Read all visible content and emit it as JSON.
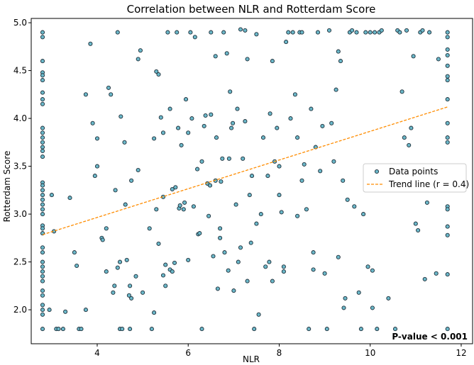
{
  "chart_data": {
    "type": "scatter",
    "title": "Correlation between NLR and Rotterdam Score",
    "xlabel": "NLR",
    "ylabel": "Rotterdam Score",
    "xlim": [
      2.55,
      12.25
    ],
    "ylim": [
      1.645,
      5.045
    ],
    "xticks": [
      4,
      6,
      8,
      10,
      12
    ],
    "yticks": [
      2.0,
      2.5,
      3.0,
      3.5,
      4.0,
      4.5,
      5.0
    ],
    "xtick_labels": [
      "4",
      "6",
      "8",
      "10",
      "12"
    ],
    "ytick_labels": [
      "2.0",
      "2.5",
      "3.0",
      "3.5",
      "4.0",
      "4.5",
      "5.0"
    ],
    "grid": false,
    "legend_position": "center-right",
    "annotation": "P-value < 0.001",
    "point_color": "#6bb8c9",
    "point_edge_color": "#1f2f3a",
    "trend_color": "#ff8c00",
    "series": [
      {
        "name": "Data points",
        "kind": "scatter",
        "points": [
          [
            2.8,
            4.9
          ],
          [
            2.8,
            4.85
          ],
          [
            2.8,
            4.6
          ],
          [
            2.8,
            4.48
          ],
          [
            2.8,
            4.45
          ],
          [
            2.8,
            4.4
          ],
          [
            2.8,
            4.27
          ],
          [
            2.8,
            4.2
          ],
          [
            2.8,
            4.15
          ],
          [
            2.8,
            3.9
          ],
          [
            2.8,
            3.85
          ],
          [
            2.8,
            3.8
          ],
          [
            2.8,
            3.75
          ],
          [
            2.8,
            3.7
          ],
          [
            2.8,
            3.66
          ],
          [
            2.8,
            3.6
          ],
          [
            2.8,
            3.33
          ],
          [
            2.8,
            3.3
          ],
          [
            2.8,
            3.25
          ],
          [
            2.8,
            3.2
          ],
          [
            2.8,
            3.15
          ],
          [
            2.8,
            3.1
          ],
          [
            2.8,
            3.05
          ],
          [
            2.8,
            3.0
          ],
          [
            2.8,
            2.88
          ],
          [
            2.8,
            2.85
          ],
          [
            2.8,
            2.8
          ],
          [
            2.8,
            2.65
          ],
          [
            2.8,
            2.6
          ],
          [
            2.8,
            2.5
          ],
          [
            2.8,
            2.45
          ],
          [
            2.8,
            2.4
          ],
          [
            2.8,
            2.35
          ],
          [
            2.8,
            2.3
          ],
          [
            2.8,
            2.2
          ],
          [
            2.8,
            2.15
          ],
          [
            2.8,
            2.05
          ],
          [
            2.8,
            2.0
          ],
          [
            2.8,
            1.95
          ],
          [
            2.8,
            1.8
          ],
          [
            2.95,
            2.0
          ],
          [
            3.0,
            3.2
          ],
          [
            3.05,
            2.82
          ],
          [
            3.1,
            1.8
          ],
          [
            3.15,
            1.8
          ],
          [
            3.25,
            1.8
          ],
          [
            3.3,
            1.98
          ],
          [
            3.4,
            3.17
          ],
          [
            3.5,
            2.6
          ],
          [
            3.55,
            2.46
          ],
          [
            3.6,
            1.8
          ],
          [
            3.65,
            1.8
          ],
          [
            3.75,
            2.0
          ],
          [
            3.75,
            4.25
          ],
          [
            3.85,
            4.78
          ],
          [
            3.9,
            3.95
          ],
          [
            3.95,
            3.4
          ],
          [
            4.0,
            3.5
          ],
          [
            4.0,
            3.79
          ],
          [
            4.1,
            2.75
          ],
          [
            4.12,
            2.73
          ],
          [
            4.2,
            2.4
          ],
          [
            4.2,
            2.85
          ],
          [
            4.25,
            4.32
          ],
          [
            4.3,
            4.25
          ],
          [
            4.35,
            2.18
          ],
          [
            4.38,
            2.25
          ],
          [
            4.4,
            3.25
          ],
          [
            4.45,
            4.9
          ],
          [
            4.45,
            2.44
          ],
          [
            4.5,
            2.5
          ],
          [
            4.5,
            1.8
          ],
          [
            4.52,
            4.02
          ],
          [
            4.55,
            1.8
          ],
          [
            4.6,
            3.75
          ],
          [
            4.62,
            3.1
          ],
          [
            4.65,
            2.52
          ],
          [
            4.7,
            2.15
          ],
          [
            4.72,
            2.25
          ],
          [
            4.72,
            1.8
          ],
          [
            4.75,
            2.12
          ],
          [
            4.75,
            3.35
          ],
          [
            4.85,
            2.35
          ],
          [
            4.9,
            3.46
          ],
          [
            4.9,
            4.62
          ],
          [
            4.95,
            4.71
          ],
          [
            5.0,
            2.18
          ],
          [
            5.15,
            2.85
          ],
          [
            5.2,
            1.8
          ],
          [
            5.25,
            1.97
          ],
          [
            5.25,
            3.79
          ],
          [
            5.3,
            3.05
          ],
          [
            5.3,
            4.49
          ],
          [
            5.35,
            4.46
          ],
          [
            5.35,
            2.69
          ],
          [
            5.4,
            4.01
          ],
          [
            5.45,
            3.85
          ],
          [
            5.45,
            3.18
          ],
          [
            5.45,
            2.36
          ],
          [
            5.5,
            2.25
          ],
          [
            5.5,
            2.47
          ],
          [
            5.55,
            4.9
          ],
          [
            5.6,
            2.42
          ],
          [
            5.6,
            4.1
          ],
          [
            5.65,
            3.26
          ],
          [
            5.65,
            2.4
          ],
          [
            5.7,
            2.49
          ],
          [
            5.72,
            3.28
          ],
          [
            5.75,
            4.9
          ],
          [
            5.78,
            3.9
          ],
          [
            5.8,
            3.06
          ],
          [
            5.82,
            3.09
          ],
          [
            5.85,
            3.72
          ],
          [
            5.9,
            3.05
          ],
          [
            5.92,
            3.12
          ],
          [
            5.95,
            4.2
          ],
          [
            6.0,
            2.52
          ],
          [
            6.0,
            3.85
          ],
          [
            6.05,
            4.9
          ],
          [
            6.08,
            4.0
          ],
          [
            6.12,
            3.08
          ],
          [
            6.15,
            4.85
          ],
          [
            6.2,
            3.47
          ],
          [
            6.22,
            2.79
          ],
          [
            6.25,
            2.8
          ],
          [
            6.3,
            3.55
          ],
          [
            6.3,
            1.8
          ],
          [
            6.35,
            3.92
          ],
          [
            6.38,
            4.03
          ],
          [
            6.42,
            3.32
          ],
          [
            6.45,
            2.98
          ],
          [
            6.48,
            3.3
          ],
          [
            6.5,
            4.9
          ],
          [
            6.5,
            4.04
          ],
          [
            6.55,
            2.56
          ],
          [
            6.6,
            3.35
          ],
          [
            6.6,
            4.65
          ],
          [
            6.62,
            3.8
          ],
          [
            6.65,
            2.22
          ],
          [
            6.7,
            2.85
          ],
          [
            6.7,
            2.75
          ],
          [
            6.72,
            3.34
          ],
          [
            6.75,
            3.58
          ],
          [
            6.78,
            4.9
          ],
          [
            6.8,
            2.6
          ],
          [
            6.85,
            4.68
          ],
          [
            6.88,
            2.41
          ],
          [
            6.9,
            3.58
          ],
          [
            6.92,
            4.28
          ],
          [
            6.95,
            3.9
          ],
          [
            6.98,
            3.95
          ],
          [
            7.0,
            2.2
          ],
          [
            7.05,
            3.1
          ],
          [
            7.08,
            4.1
          ],
          [
            7.1,
            2.5
          ],
          [
            7.15,
            4.93
          ],
          [
            7.15,
            2.65
          ],
          [
            7.2,
            3.58
          ],
          [
            7.25,
            3.97
          ],
          [
            7.25,
            4.92
          ],
          [
            7.3,
            4.62
          ],
          [
            7.3,
            2.3
          ],
          [
            7.35,
            3.2
          ],
          [
            7.38,
            2.7
          ],
          [
            7.4,
            3.4
          ],
          [
            7.45,
            1.8
          ],
          [
            7.5,
            2.9
          ],
          [
            7.5,
            4.88
          ],
          [
            7.55,
            1.95
          ],
          [
            7.6,
            3.0
          ],
          [
            7.65,
            3.8
          ],
          [
            7.7,
            2.45
          ],
          [
            7.75,
            3.4
          ],
          [
            7.78,
            2.5
          ],
          [
            7.8,
            4.05
          ],
          [
            7.85,
            2.3
          ],
          [
            7.85,
            4.6
          ],
          [
            7.9,
            3.55
          ],
          [
            7.95,
            3.9
          ],
          [
            8.0,
            3.5
          ],
          [
            8.0,
            3.2
          ],
          [
            8.05,
            3.02
          ],
          [
            8.1,
            2.4
          ],
          [
            8.1,
            2.45
          ],
          [
            8.15,
            4.8
          ],
          [
            8.2,
            4.9
          ],
          [
            8.25,
            4.0
          ],
          [
            8.3,
            4.9
          ],
          [
            8.35,
            4.25
          ],
          [
            8.4,
            3.8
          ],
          [
            8.4,
            2.98
          ],
          [
            8.45,
            4.9
          ],
          [
            8.5,
            4.9
          ],
          [
            8.5,
            3.35
          ],
          [
            8.55,
            3.52
          ],
          [
            8.6,
            3.05
          ],
          [
            8.65,
            1.8
          ],
          [
            8.7,
            4.1
          ],
          [
            8.75,
            2.6
          ],
          [
            8.75,
            2.42
          ],
          [
            8.8,
            3.7
          ],
          [
            8.85,
            4.9
          ],
          [
            8.9,
            3.45
          ],
          [
            8.95,
            3.92
          ],
          [
            9.0,
            2.38
          ],
          [
            9.05,
            1.8
          ],
          [
            9.1,
            4.92
          ],
          [
            9.15,
            3.95
          ],
          [
            9.2,
            3.55
          ],
          [
            9.25,
            4.3
          ],
          [
            9.3,
            2.55
          ],
          [
            9.3,
            4.7
          ],
          [
            9.35,
            4.6
          ],
          [
            9.4,
            3.35
          ],
          [
            9.42,
            2.02
          ],
          [
            9.45,
            2.12
          ],
          [
            9.5,
            3.15
          ],
          [
            9.55,
            4.9
          ],
          [
            9.6,
            4.92
          ],
          [
            9.65,
            3.08
          ],
          [
            9.7,
            4.9
          ],
          [
            9.75,
            2.18
          ],
          [
            9.8,
            1.8
          ],
          [
            9.85,
            3.0
          ],
          [
            9.9,
            4.9
          ],
          [
            9.95,
            2.45
          ],
          [
            10.0,
            4.9
          ],
          [
            10.05,
            2.02
          ],
          [
            10.05,
            2.41
          ],
          [
            10.1,
            4.9
          ],
          [
            10.15,
            1.8
          ],
          [
            10.2,
            4.9
          ],
          [
            10.25,
            4.92
          ],
          [
            10.4,
            2.12
          ],
          [
            10.55,
            1.8
          ],
          [
            10.6,
            4.92
          ],
          [
            10.65,
            4.9
          ],
          [
            10.7,
            4.28
          ],
          [
            10.75,
            3.8
          ],
          [
            10.8,
            4.92
          ],
          [
            10.85,
            3.72
          ],
          [
            10.9,
            3.9
          ],
          [
            10.95,
            4.65
          ],
          [
            11.0,
            2.9
          ],
          [
            11.05,
            2.83
          ],
          [
            11.1,
            4.9
          ],
          [
            11.15,
            4.92
          ],
          [
            11.2,
            2.32
          ],
          [
            11.25,
            3.12
          ],
          [
            11.3,
            4.9
          ],
          [
            11.35,
            3.35
          ],
          [
            11.45,
            2.38
          ],
          [
            11.5,
            4.62
          ],
          [
            11.7,
            4.9
          ],
          [
            11.7,
            4.85
          ],
          [
            11.7,
            4.72
          ],
          [
            11.7,
            4.66
          ],
          [
            11.7,
            4.55
          ],
          [
            11.7,
            4.44
          ],
          [
            11.7,
            4.4
          ],
          [
            11.7,
            4.2
          ],
          [
            11.7,
            3.95
          ],
          [
            11.7,
            3.8
          ],
          [
            11.7,
            3.75
          ],
          [
            11.7,
            3.41
          ],
          [
            11.7,
            3.08
          ],
          [
            11.7,
            3.05
          ],
          [
            11.7,
            2.87
          ],
          [
            11.7,
            2.78
          ],
          [
            11.7,
            2.37
          ],
          [
            11.7,
            1.8
          ]
        ]
      },
      {
        "name": "Trend line (r = 0.4)",
        "kind": "line",
        "points": [
          [
            2.8,
            2.785
          ],
          [
            11.7,
            4.12
          ]
        ]
      }
    ]
  }
}
